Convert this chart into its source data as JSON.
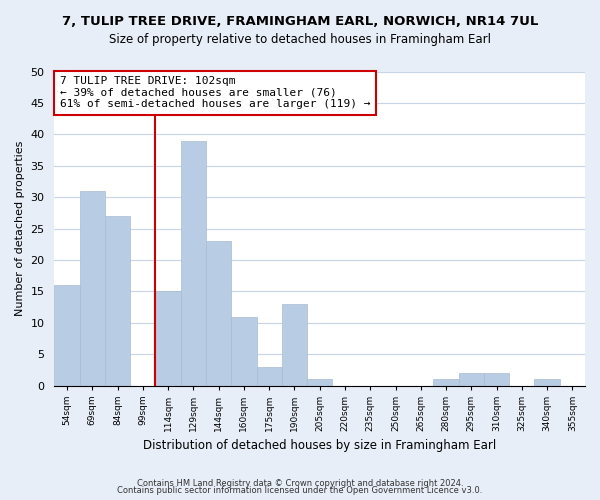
{
  "title1": "7, TULIP TREE DRIVE, FRAMINGHAM EARL, NORWICH, NR14 7UL",
  "title2": "Size of property relative to detached houses in Framingham Earl",
  "xlabel": "Distribution of detached houses by size in Framingham Earl",
  "ylabel": "Number of detached properties",
  "bar_labels": [
    "54sqm",
    "69sqm",
    "84sqm",
    "99sqm",
    "114sqm",
    "129sqm",
    "144sqm",
    "160sqm",
    "175sqm",
    "190sqm",
    "205sqm",
    "220sqm",
    "235sqm",
    "250sqm",
    "265sqm",
    "280sqm",
    "295sqm",
    "310sqm",
    "325sqm",
    "340sqm",
    "355sqm"
  ],
  "bar_values": [
    16,
    31,
    27,
    0,
    15,
    39,
    23,
    11,
    3,
    13,
    1,
    0,
    0,
    0,
    0,
    1,
    2,
    2,
    0,
    1,
    0
  ],
  "bar_color": "#b8cce4",
  "bar_edge_color": "#aabbd0",
  "reference_line_color": "#cc0000",
  "annotation_box_color": "#cc0000",
  "annotation_title": "7 TULIP TREE DRIVE: 102sqm",
  "annotation_line1": "← 39% of detached houses are smaller (76)",
  "annotation_line2": "61% of semi-detached houses are larger (119) →",
  "ylim": [
    0,
    50
  ],
  "yticks": [
    0,
    5,
    10,
    15,
    20,
    25,
    30,
    35,
    40,
    45,
    50
  ],
  "footer1": "Contains HM Land Registry data © Crown copyright and database right 2024.",
  "footer2": "Contains public sector information licensed under the Open Government Licence v3.0.",
  "bg_color": "#e8eef8",
  "plot_bg_color": "#ffffff",
  "grid_color": "#c8d4e8"
}
